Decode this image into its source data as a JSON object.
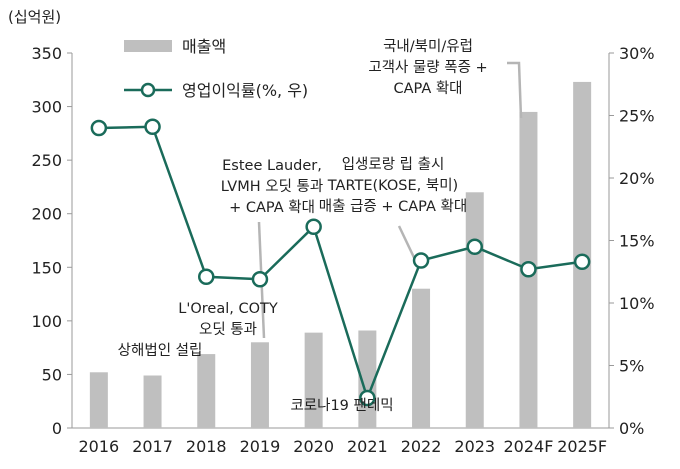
{
  "chart_data": {
    "type": "bar+line",
    "categories": [
      "2016",
      "2017",
      "2018",
      "2019",
      "2020",
      "2021",
      "2022",
      "2023",
      "2024F",
      "2025F"
    ],
    "left_axis_unit": "(십억원)",
    "left_ylim": [
      0,
      350
    ],
    "left_ticks": [
      "0",
      "50",
      "100",
      "150",
      "200",
      "250",
      "300",
      "350"
    ],
    "right_ylim": [
      0,
      30
    ],
    "right_ticks": [
      "0%",
      "5%",
      "10%",
      "15%",
      "20%",
      "25%",
      "30%"
    ],
    "series": [
      {
        "name": "매출액",
        "type": "bar",
        "axis": "left",
        "color": "#bfbfbf",
        "values": [
          52,
          49,
          69,
          80,
          89,
          91,
          130,
          220,
          295,
          323
        ]
      },
      {
        "name": "영업이익률(%, 우)",
        "type": "line",
        "axis": "right",
        "color": "#1a6b5a",
        "values": [
          24.0,
          24.1,
          12.1,
          11.9,
          16.1,
          2.4,
          13.4,
          14.5,
          12.7,
          13.3
        ]
      }
    ],
    "grid": false,
    "legend": "top-left",
    "annotations": [
      {
        "lines": [
          "상해법인 설립"
        ]
      },
      {
        "lines": [
          "L'Oreal, COTY",
          "오딧 통과"
        ]
      },
      {
        "lines": [
          "Estee Lauder,",
          "LVMH 오딧 통과",
          "+ CAPA 확대"
        ]
      },
      {
        "lines": [
          "코로나19 팬데믹"
        ]
      },
      {
        "lines": [
          "입생로랑 립 출시",
          "TARTE(KOSE, 북미)",
          "매출 급증 + CAPA 확대"
        ]
      },
      {
        "lines": [
          "국내/북미/유럽",
          "고객사 물량 폭증 +",
          "CAPA 확대"
        ]
      }
    ]
  }
}
